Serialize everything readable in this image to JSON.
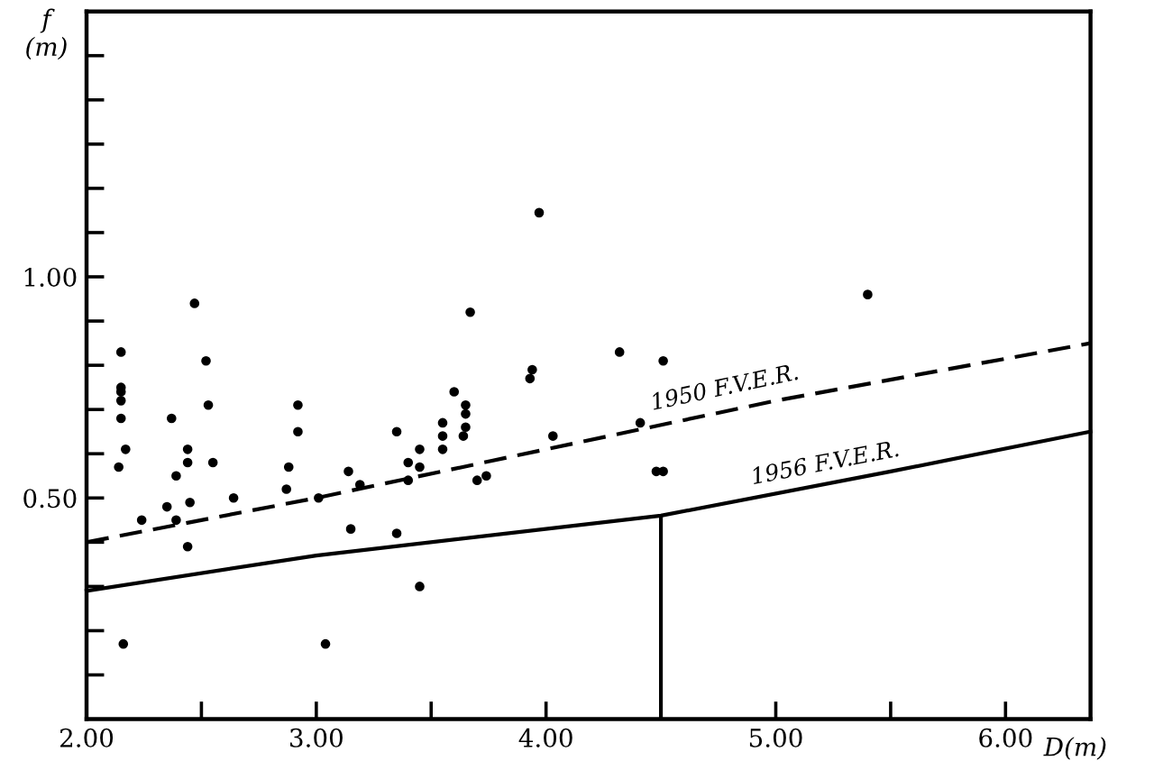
{
  "chart_data": {
    "type": "scatter",
    "xlabel": "D(m)",
    "ylabel": "f\n(m)",
    "xlim": [
      2.0,
      6.37
    ],
    "ylim": [
      0,
      1.6
    ],
    "xticks": [
      {
        "value": 2.0,
        "label": "2.00"
      },
      {
        "value": 2.5,
        "label": null
      },
      {
        "value": 3.0,
        "label": "3.00"
      },
      {
        "value": 3.5,
        "label": null
      },
      {
        "value": 4.0,
        "label": "4.00"
      },
      {
        "value": 4.5,
        "label": null
      },
      {
        "value": 5.0,
        "label": "5.00"
      },
      {
        "value": 5.5,
        "label": null
      },
      {
        "value": 6.0,
        "label": "6.00"
      }
    ],
    "yticks": [
      {
        "value": 0.1,
        "label": null
      },
      {
        "value": 0.2,
        "label": null
      },
      {
        "value": 0.3,
        "label": null
      },
      {
        "value": 0.4,
        "label": null
      },
      {
        "value": 0.5,
        "label": "0.50"
      },
      {
        "value": 0.6,
        "label": null
      },
      {
        "value": 0.7,
        "label": null
      },
      {
        "value": 0.8,
        "label": null
      },
      {
        "value": 0.9,
        "label": null
      },
      {
        "value": 1.0,
        "label": "1.00"
      },
      {
        "value": 1.1,
        "label": null
      },
      {
        "value": 1.2,
        "label": null
      },
      {
        "value": 1.3,
        "label": null
      },
      {
        "value": 1.4,
        "label": null
      },
      {
        "value": 1.5,
        "label": null
      }
    ],
    "grid": false,
    "legend": false,
    "series": [
      {
        "color": "#000000",
        "marker": "circle",
        "x": [
          3.97,
          2.47,
          3.67,
          2.15,
          2.52,
          3.94,
          3.93,
          2.15,
          5.4,
          4.32,
          4.51,
          4.03,
          4.48,
          4.51,
          4.41,
          2.15,
          2.15,
          2.15,
          2.17,
          2.14,
          2.37,
          2.44,
          2.44,
          2.39,
          2.53,
          2.55,
          2.45,
          2.35,
          2.39,
          2.24,
          2.44,
          2.64,
          2.92,
          2.92,
          2.88,
          2.87,
          3.01,
          3.14,
          3.19,
          3.15,
          3.35,
          3.35,
          3.45,
          3.4,
          3.4,
          3.45,
          3.55,
          3.55,
          3.55,
          3.6,
          3.65,
          3.65,
          3.65,
          3.64,
          3.7,
          3.74,
          3.45,
          3.04,
          2.16
        ],
        "values": [
          1.145,
          0.94,
          0.92,
          0.83,
          0.81,
          0.79,
          0.77,
          0.75,
          0.96,
          0.83,
          0.81,
          0.64,
          0.56,
          0.56,
          0.67,
          0.74,
          0.72,
          0.68,
          0.61,
          0.57,
          0.68,
          0.61,
          0.58,
          0.55,
          0.71,
          0.58,
          0.49,
          0.48,
          0.45,
          0.45,
          0.39,
          0.5,
          0.71,
          0.65,
          0.57,
          0.52,
          0.5,
          0.56,
          0.53,
          0.43,
          0.65,
          0.42,
          0.61,
          0.58,
          0.54,
          0.57,
          0.67,
          0.64,
          0.61,
          0.74,
          0.71,
          0.69,
          0.66,
          0.64,
          0.54,
          0.55,
          0.3,
          0.17,
          0.17
        ]
      },
      {
        "type": "line",
        "color": "#000000",
        "line_style": "dashed",
        "x": [
          2.0,
          3.0,
          4.0,
          5.0,
          6.37
        ],
        "values": [
          0.4,
          0.5,
          0.61,
          0.72,
          0.85
        ]
      },
      {
        "type": "line",
        "color": "#000000",
        "line_style": "solid",
        "x": [
          2.0,
          3.0,
          4.5,
          5.5,
          6.37
        ],
        "values": [
          0.29,
          0.37,
          0.46,
          0.56,
          0.65
        ]
      }
    ],
    "ref_lines": [
      {
        "axis": "x",
        "value": 4.5,
        "color": "#000000",
        "line_style": "solid"
      }
    ],
    "annotations": [
      "1950 F.V.E.R.",
      "1956 F.V.E.R."
    ]
  }
}
